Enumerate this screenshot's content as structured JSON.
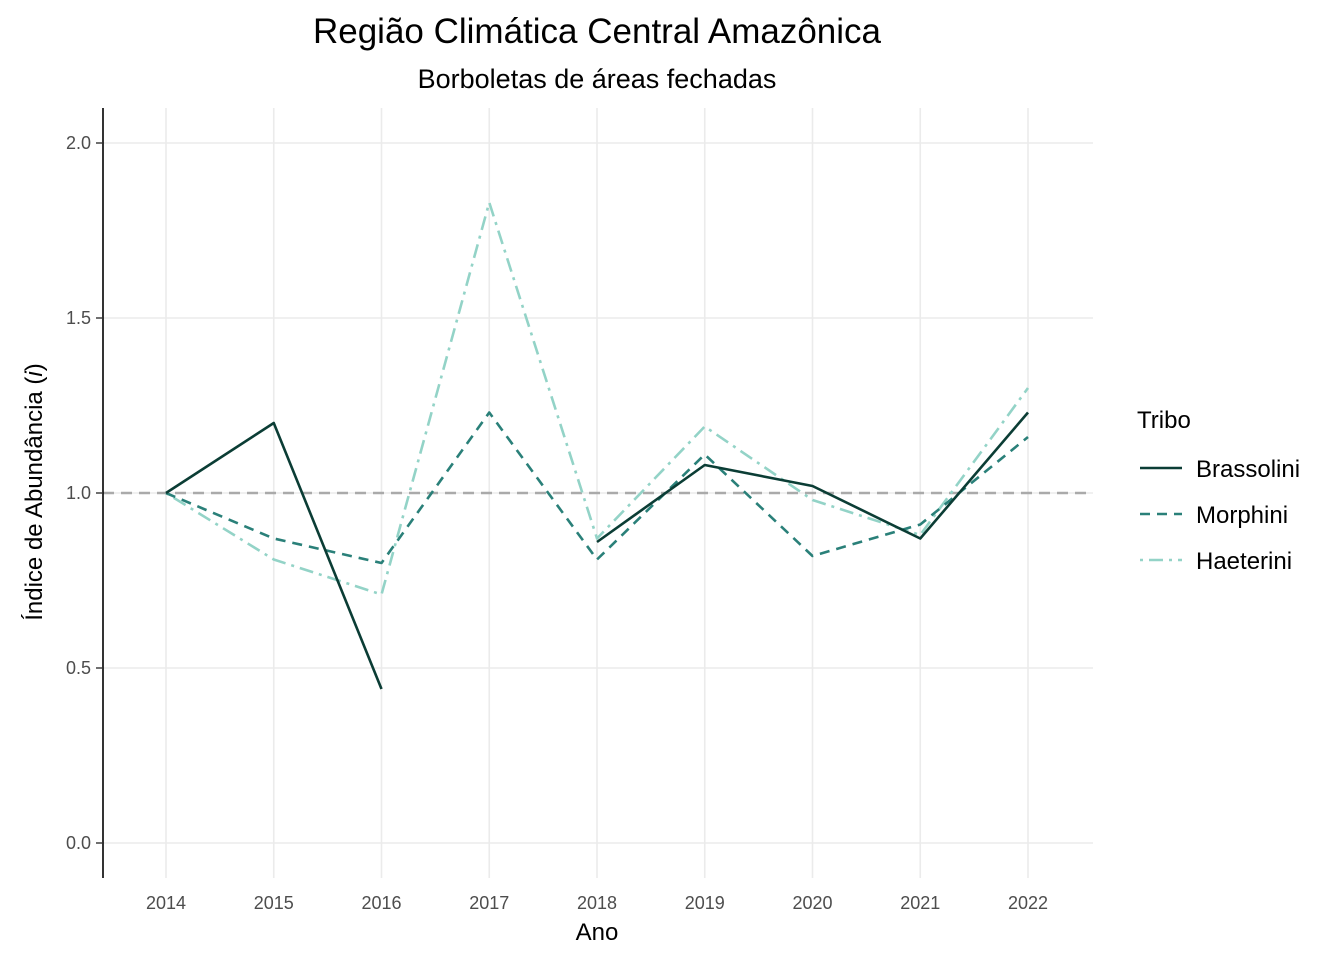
{
  "chart_data": {
    "type": "line",
    "title": "Região Climática Central Amazônica",
    "subtitle": "Borboletas de áreas fechadas",
    "xlabel": "Ano",
    "ylabel_main": "Índice de Abundância (",
    "ylabel_italic": "i",
    "ylabel_end": ")",
    "x": [
      2014,
      2015,
      2016,
      2017,
      2018,
      2019,
      2020,
      2021,
      2022
    ],
    "x_tick_labels": [
      "2014",
      "2015",
      "2016",
      "2017",
      "2018",
      "2019",
      "2020",
      "2021",
      "2022"
    ],
    "ylim": [
      -0.1,
      2.1
    ],
    "y_ticks": [
      0.0,
      0.5,
      1.0,
      1.5,
      2.0
    ],
    "y_tick_labels": [
      "0.0",
      "0.5",
      "1.0",
      "1.5",
      "2.0"
    ],
    "reference_line": 1.0,
    "grid": true,
    "legend_title": "Tribo",
    "legend_position": "right",
    "series": [
      {
        "name": "Brassolini",
        "color": "#0b3d35",
        "dash": "solid",
        "values": [
          1.0,
          1.2,
          0.44,
          null,
          0.86,
          1.08,
          1.02,
          0.87,
          1.23
        ]
      },
      {
        "name": "Morphini",
        "color": "#2a8079",
        "dash": "dashed",
        "values": [
          1.0,
          0.87,
          0.8,
          1.23,
          0.81,
          1.11,
          0.82,
          0.91,
          1.16
        ]
      },
      {
        "name": "Haeterini",
        "color": "#93d3c7",
        "dash": "dotdash",
        "values": [
          1.0,
          0.81,
          0.71,
          1.83,
          0.87,
          1.19,
          0.98,
          0.88,
          1.3
        ]
      }
    ]
  }
}
